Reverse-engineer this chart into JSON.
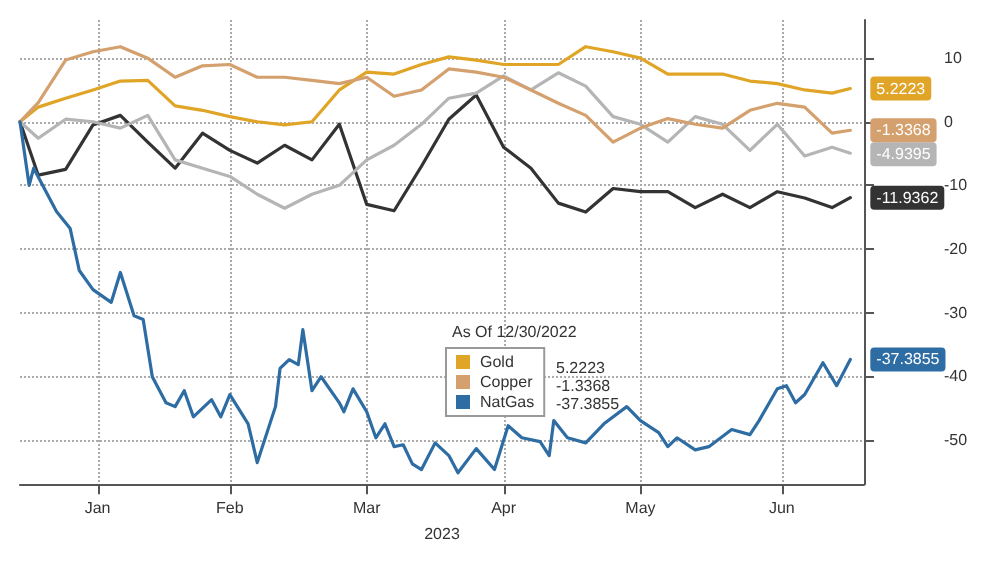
{
  "chart_data": {
    "type": "line",
    "xlabel": "2023",
    "legend_title": "As Of 12/30/2022",
    "legend": "bottom",
    "grid": true,
    "marker": "none",
    "line_style": "solid",
    "x": [
      "2022-12-30",
      "2023-01-03",
      "2023-01-09",
      "2023-01-15",
      "2023-01-21",
      "2023-01-27",
      "2023-02-02",
      "2023-02-08",
      "2023-02-14",
      "2023-02-20",
      "2023-02-26",
      "2023-03-04",
      "2023-03-10",
      "2023-03-16",
      "2023-03-22",
      "2023-03-28",
      "2023-04-03",
      "2023-04-09",
      "2023-04-15",
      "2023-04-21",
      "2023-04-27",
      "2023-05-03",
      "2023-05-09",
      "2023-05-15",
      "2023-05-21",
      "2023-05-27",
      "2023-06-02",
      "2023-06-08",
      "2023-06-14",
      "2023-06-20",
      "2023-06-26",
      "2023-06-30"
    ],
    "xlim": [
      "2022-12-30",
      "2023-07-03"
    ],
    "xticks": [
      {
        "value": "2023-01-16",
        "label": "Jan"
      },
      {
        "value": "2023-02-14",
        "label": "Feb"
      },
      {
        "value": "2023-03-16",
        "label": "Mar"
      },
      {
        "value": "2023-04-15",
        "label": "Apr"
      },
      {
        "value": "2023-05-15",
        "label": "May"
      },
      {
        "value": "2023-06-15",
        "label": "Jun"
      }
    ],
    "ylim": [
      -57,
      16
    ],
    "yticks": [
      -50,
      -40,
      -30,
      -20,
      -10,
      0,
      10
    ],
    "series": [
      {
        "color": "#333333",
        "value_labels": [
          null,
          null,
          null,
          null,
          null,
          null,
          null,
          null,
          null,
          null,
          null,
          null,
          null,
          null,
          null,
          null,
          null,
          null,
          null,
          null,
          null,
          null,
          null,
          null,
          null,
          null,
          null,
          null,
          null,
          null,
          null,
          "-11.9362"
        ],
        "values": [
          0,
          -8.4,
          -7.5,
          -0.5,
          1,
          -3.2,
          -7.3,
          -1.8,
          -4.5,
          -6.5,
          -3.7,
          -6,
          -0.4,
          -13,
          -14,
          -7,
          0.4,
          4.2,
          -4,
          -7.3,
          -12.8,
          -14.2,
          -10.5,
          -11,
          -11,
          -13.5,
          -11.4,
          -13.5,
          -11,
          -12,
          -13.5,
          -11.9362
        ]
      },
      {
        "color": "#b5b5b5",
        "value_labels": [
          null,
          null,
          null,
          null,
          null,
          null,
          null,
          null,
          null,
          null,
          null,
          null,
          null,
          null,
          null,
          null,
          null,
          null,
          null,
          null,
          null,
          null,
          null,
          null,
          null,
          null,
          null,
          null,
          null,
          null,
          null,
          "-4.9395"
        ],
        "values": [
          0,
          -2.6,
          0.4,
          0,
          -1,
          1,
          -6,
          -7.3,
          -8.6,
          -11.4,
          -13.6,
          -11.4,
          -10,
          -6,
          -3.7,
          -0.4,
          3.7,
          4.5,
          7.2,
          5,
          7.7,
          5.6,
          0.8,
          -0.4,
          -3.2,
          0.8,
          -0.4,
          -4.5,
          -0.4,
          -5.4,
          -4,
          -4.9395
        ]
      },
      {
        "name": "Gold",
        "color": "#e0a526",
        "value_labels": [
          null,
          null,
          null,
          null,
          null,
          null,
          null,
          null,
          null,
          null,
          null,
          null,
          null,
          null,
          null,
          null,
          null,
          null,
          null,
          null,
          null,
          null,
          null,
          null,
          null,
          null,
          null,
          null,
          null,
          null,
          null,
          "5.2223"
        ],
        "values": [
          0,
          2.3,
          3.7,
          5,
          6.4,
          6.5,
          2.5,
          1.8,
          0.8,
          0,
          -0.5,
          0,
          5,
          7.8,
          7.5,
          9,
          10.2,
          9.7,
          9,
          9,
          9,
          11.8,
          11,
          10,
          7.5,
          7.5,
          7.5,
          6.4,
          6,
          5,
          4.5,
          5.2223
        ]
      },
      {
        "name": "Copper",
        "color": "#d4a06e",
        "value_labels": [
          null,
          null,
          null,
          null,
          null,
          null,
          null,
          null,
          null,
          null,
          null,
          null,
          null,
          null,
          null,
          null,
          null,
          null,
          null,
          null,
          null,
          null,
          null,
          null,
          null,
          null,
          null,
          null,
          null,
          null,
          null,
          "-1.3368"
        ],
        "values": [
          0,
          3,
          9.7,
          11,
          11.8,
          10,
          7,
          8.8,
          9,
          7,
          7,
          6.5,
          6,
          7,
          4,
          5,
          8.3,
          7.8,
          7,
          5,
          2.9,
          1,
          -3.2,
          -1,
          0.5,
          -0.4,
          -1,
          1.8,
          2.9,
          2.3,
          -1.8,
          -1.3368
        ]
      },
      {
        "name": "NatGas",
        "color": "#2e6da4",
        "value_labels": [
          null,
          null,
          null,
          null,
          null,
          null,
          null,
          null,
          null,
          null,
          null,
          null,
          null,
          null,
          null,
          null,
          null,
          null,
          null,
          null,
          null,
          null,
          null,
          null,
          null,
          null,
          null,
          null,
          null,
          null,
          null,
          null,
          null,
          null,
          null,
          null,
          null,
          null,
          null,
          null,
          null,
          null,
          null,
          null,
          null,
          null,
          null,
          null,
          null,
          null,
          null,
          null,
          null,
          null,
          null,
          null,
          null,
          null,
          null,
          null,
          null,
          null,
          null,
          null,
          null,
          null,
          null,
          null,
          "-37.3855"
        ],
        "x": [
          "2022-12-30",
          "2023-01-01",
          "2023-01-02",
          "2023-01-05",
          "2023-01-07",
          "2023-01-10",
          "2023-01-12",
          "2023-01-15",
          "2023-01-19",
          "2023-01-21",
          "2023-01-24",
          "2023-01-26",
          "2023-01-28",
          "2023-01-31",
          "2023-02-02",
          "2023-02-04",
          "2023-02-06",
          "2023-02-10",
          "2023-02-12",
          "2023-02-14",
          "2023-02-18",
          "2023-02-20",
          "2023-02-24",
          "2023-02-25",
          "2023-02-27",
          "2023-03-01",
          "2023-03-02",
          "2023-03-04",
          "2023-03-06",
          "2023-03-10",
          "2023-03-11",
          "2023-03-13",
          "2023-03-16",
          "2023-03-18",
          "2023-03-20",
          "2023-03-22",
          "2023-03-24",
          "2023-03-26",
          "2023-03-28",
          "2023-03-31",
          "2023-04-03",
          "2023-04-05",
          "2023-04-09",
          "2023-04-13",
          "2023-04-16",
          "2023-04-19",
          "2023-04-23",
          "2023-04-25",
          "2023-04-26",
          "2023-04-29",
          "2023-05-03",
          "2023-05-07",
          "2023-05-12",
          "2023-05-15",
          "2023-05-19",
          "2023-05-21",
          "2023-05-23",
          "2023-05-27",
          "2023-05-30",
          "2023-06-04",
          "2023-06-08",
          "2023-06-10",
          "2023-06-14",
          "2023-06-16",
          "2023-06-18",
          "2023-06-20",
          "2023-06-24",
          "2023-06-27",
          "2023-06-30"
        ],
        "values": [
          0,
          -10,
          -7.3,
          -11.4,
          -14.1,
          -16.8,
          -23.4,
          -26.4,
          -28.4,
          -23.7,
          -30.5,
          -31.1,
          -40.1,
          -44.2,
          -44.8,
          -42.3,
          -46.4,
          -43.7,
          -46.4,
          -42.9,
          -47.5,
          -53.6,
          -44.8,
          -38.8,
          -37.4,
          -38.2,
          -32.7,
          -42.3,
          -40.1,
          -44.2,
          -45.6,
          -42,
          -45.6,
          -49.7,
          -47.5,
          -51.1,
          -50.8,
          -53.8,
          -54.7,
          -50.5,
          -52.5,
          -55.2,
          -51.4,
          -54.7,
          -47.8,
          -49.7,
          -50.3,
          -52.5,
          -47,
          -49.7,
          -50.5,
          -47.5,
          -44.8,
          -47,
          -48.9,
          -51.1,
          -49.7,
          -51.6,
          -51.1,
          -48.4,
          -49.2,
          -47,
          -42,
          -41.5,
          -44.2,
          -42.9,
          -37.9,
          -41.5,
          -37.3855
        ]
      }
    ]
  }
}
